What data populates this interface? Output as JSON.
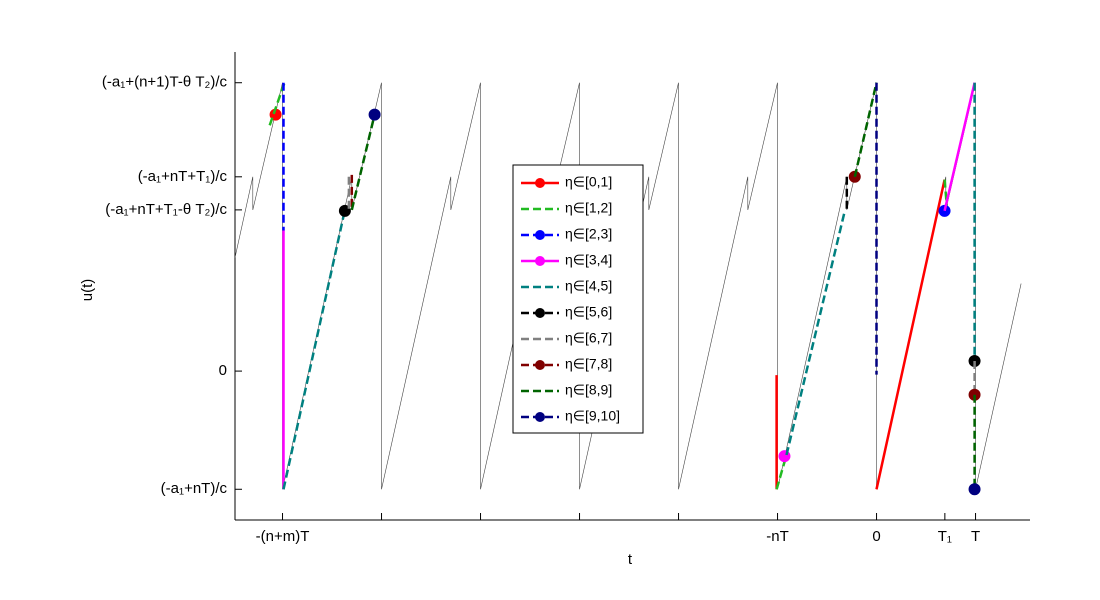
{
  "chart_data": {
    "type": "line",
    "xlabel": "t",
    "ylabel": "u(t)",
    "xlim": [
      -6.48,
      1.55
    ],
    "ylim": [
      -1.26,
      2.7
    ],
    "xticks": [
      {
        "value": -6,
        "label": "-(n+m)T"
      },
      {
        "value": -5,
        "label": null
      },
      {
        "value": -4,
        "label": null
      },
      {
        "value": -3,
        "label": null
      },
      {
        "value": -2,
        "label": null
      },
      {
        "value": -1,
        "label": "-nT"
      },
      0,
      {
        "value": 0.69,
        "label": "T₁"
      },
      {
        "value": 1,
        "label": "T"
      }
    ],
    "yticks": [
      {
        "value": -1,
        "label": "(-a₁+nT)/c"
      },
      0,
      {
        "value": 1.364,
        "label": "(-a₁+nT+T₁-θ T₂)/c"
      },
      {
        "value": 1.644,
        "label": "(-a₁+nT+T₁)/c"
      },
      {
        "value": 2.44,
        "label": "(-a₁+(n+1)T-θ T₂)/c"
      }
    ],
    "legend": "center",
    "series": [
      {
        "color": "#444444",
        "style": "thin",
        "x": [
          -6.48,
          -6.3,
          -6.3,
          -6,
          -6,
          -5.3,
          -5.3,
          -5,
          -5,
          -4.3,
          -4.3,
          -4,
          -4,
          -3.3,
          -3.3,
          -3,
          -3,
          -2.3,
          -2.3,
          -2,
          -2,
          -1.3,
          -1.3,
          -1,
          -1,
          -0.3,
          -0.3,
          0,
          0,
          0.7,
          0.7,
          1,
          1,
          1.46
        ],
        "y": [
          0.96,
          1.644,
          1.364,
          2.44,
          -1,
          1.644,
          1.364,
          2.44,
          -1,
          1.644,
          1.364,
          2.44,
          -1,
          1.644,
          1.364,
          2.44,
          -1,
          1.644,
          1.364,
          2.44,
          -1,
          1.644,
          1.364,
          2.44,
          -1,
          1.644,
          1.364,
          2.44,
          -1,
          1.644,
          1.364,
          2.44,
          -1,
          0.74
        ]
      },
      {
        "name": "η∈[0,1]",
        "color": "#ff0000",
        "style": "solid",
        "x": [
          -1.01,
          -1.01,
          null,
          0,
          0.687
        ],
        "y": [
          -0.034,
          -1,
          null,
          -1,
          1.62
        ],
        "markers": {
          "x": [
            -6.07
          ],
          "y": [
            2.17
          ]
        }
      },
      {
        "name": "η∈[1,2]",
        "color": "#22bb22",
        "style": "dashed",
        "x": [
          -6.13,
          -5.98,
          null,
          -1.01,
          -0.91,
          null,
          0.687,
          0.71
        ],
        "y": [
          2.08,
          2.44,
          null,
          -1,
          -0.71,
          null,
          1.62,
          1.4
        ]
      },
      {
        "name": "η∈[2,3]",
        "color": "#0000ff",
        "style": "dashed",
        "x": [
          -5.99,
          -5.99
        ],
        "y": [
          2.44,
          1.19
        ],
        "markers": {
          "x": [
            0.687
          ],
          "y": [
            1.356
          ]
        }
      },
      {
        "name": "η∈[3,4]",
        "color": "#ff00ff",
        "style": "solid",
        "x": [
          -5.99,
          -5.99,
          null,
          0.687,
          0.99
        ],
        "y": [
          1.19,
          -1,
          null,
          1.356,
          2.44
        ],
        "markers": {
          "x": [
            -0.93
          ],
          "y": [
            -0.72
          ]
        }
      },
      {
        "name": "η∈[4,5]",
        "color": "#008080",
        "style": "dashed",
        "x": [
          -5.99,
          -5.37,
          null,
          -0.91,
          -0.32,
          null,
          0.99,
          0.99
        ],
        "y": [
          -1,
          1.364,
          null,
          -0.71,
          1.36,
          null,
          2.44,
          0.09
        ]
      },
      {
        "name": "η∈[5,6]",
        "color": "#000000",
        "style": "dashed",
        "x": [
          -0.3,
          -0.3
        ],
        "y": [
          1.644,
          1.364
        ],
        "markers": {
          "x": [
            -5.37,
            0.99
          ],
          "y": [
            1.356,
            0.085
          ]
        }
      },
      {
        "name": "η∈[6,7]",
        "color": "#808080",
        "style": "dashed",
        "x": [
          -5.33,
          -5.33,
          null,
          0.99,
          0.99
        ],
        "y": [
          1.644,
          1.364,
          null,
          0.085,
          -0.2
        ]
      },
      {
        "name": "η∈[7,8]",
        "color": "#800000",
        "style": "dashed",
        "x": [
          -5.3,
          -5.3
        ],
        "y": [
          1.66,
          1.364
        ],
        "markers": {
          "x": [
            -0.22,
            0.99
          ],
          "y": [
            1.644,
            -0.2
          ]
        }
      },
      {
        "name": "η∈[8,9]",
        "color": "#006400",
        "style": "dashed",
        "x": [
          -5.3,
          -5.07,
          null,
          -0.22,
          0,
          null,
          0.99,
          0.99
        ],
        "y": [
          1.364,
          2.17,
          null,
          1.644,
          2.44,
          null,
          -0.2,
          -1
        ]
      },
      {
        "name": "η∈[9,10]",
        "color": "#000080",
        "style": "dashed",
        "x": [
          0,
          0
        ],
        "y": [
          2.44,
          -0.03
        ],
        "markers": {
          "x": [
            -5.07,
            0.99
          ],
          "y": [
            2.17,
            -1
          ]
        }
      }
    ]
  }
}
